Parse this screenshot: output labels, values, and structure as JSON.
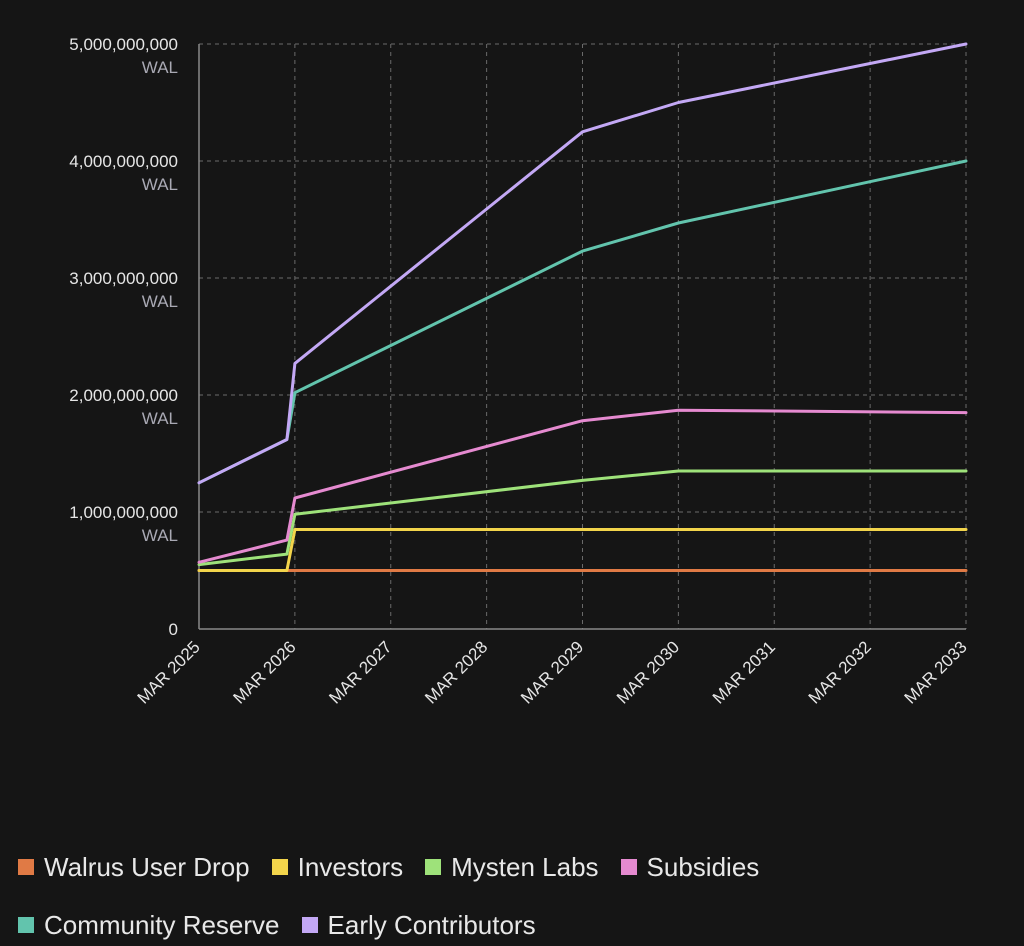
{
  "chart_data": {
    "type": "line",
    "title": "",
    "xlabel": "",
    "ylabel": "",
    "x_ticks": [
      "MAR 2025",
      "MAR 2026",
      "MAR 2027",
      "MAR 2028",
      "MAR 2029",
      "MAR 2030",
      "MAR 2031",
      "MAR 2032",
      "MAR 2033"
    ],
    "y_ticks": [
      {
        "value": 0,
        "label": "0",
        "unit": ""
      },
      {
        "value": 1000000000,
        "label": "1,000,000,000",
        "unit": "WAL"
      },
      {
        "value": 2000000000,
        "label": "2,000,000,000",
        "unit": "WAL"
      },
      {
        "value": 3000000000,
        "label": "3,000,000,000",
        "unit": "WAL"
      },
      {
        "value": 4000000000,
        "label": "4,000,000,000",
        "unit": "WAL"
      },
      {
        "value": 5000000000,
        "label": "5,000,000,000",
        "unit": "WAL"
      }
    ],
    "xlim": [
      "2025-03",
      "2033-03"
    ],
    "ylim": [
      0,
      5000000000
    ],
    "grid": true,
    "legend_position": "bottom",
    "series": [
      {
        "name": "Walrus User Drop",
        "color": "#e07a45",
        "points": [
          [
            "2025-03",
            500000000
          ],
          [
            "2033-03",
            500000000
          ]
        ]
      },
      {
        "name": "Investors",
        "color": "#f2d44b",
        "points": [
          [
            "2025-03",
            500000000
          ],
          [
            "2026-02",
            500000000
          ],
          [
            "2026-03",
            850000000
          ],
          [
            "2033-03",
            850000000
          ]
        ]
      },
      {
        "name": "Mysten Labs",
        "color": "#9ee27a",
        "points": [
          [
            "2025-03",
            550000000
          ],
          [
            "2026-02",
            640000000
          ],
          [
            "2026-03",
            980000000
          ],
          [
            "2029-03",
            1270000000
          ],
          [
            "2030-03",
            1350000000
          ],
          [
            "2033-03",
            1350000000
          ]
        ]
      },
      {
        "name": "Subsidies",
        "color": "#e58ad0",
        "points": [
          [
            "2025-03",
            570000000
          ],
          [
            "2026-02",
            760000000
          ],
          [
            "2026-03",
            1120000000
          ],
          [
            "2029-03",
            1780000000
          ],
          [
            "2030-03",
            1870000000
          ],
          [
            "2033-03",
            1850000000
          ]
        ]
      },
      {
        "name": "Community Reserve",
        "color": "#62c4ad",
        "points": [
          [
            "2025-03",
            1250000000
          ],
          [
            "2026-02",
            1620000000
          ],
          [
            "2026-03",
            2020000000
          ],
          [
            "2029-03",
            3230000000
          ],
          [
            "2030-03",
            3470000000
          ],
          [
            "2033-03",
            4000000000
          ]
        ]
      },
      {
        "name": "Early Contributors",
        "color": "#c3a8f5",
        "points": [
          [
            "2025-03",
            1250000000
          ],
          [
            "2026-02",
            1620000000
          ],
          [
            "2026-03",
            2270000000
          ],
          [
            "2029-03",
            4250000000
          ],
          [
            "2030-03",
            4500000000
          ],
          [
            "2033-03",
            5000000000
          ]
        ]
      }
    ]
  },
  "colors": {
    "background": "#151515",
    "grid": "#6a6a6a",
    "axis": "#8a8a8a"
  }
}
